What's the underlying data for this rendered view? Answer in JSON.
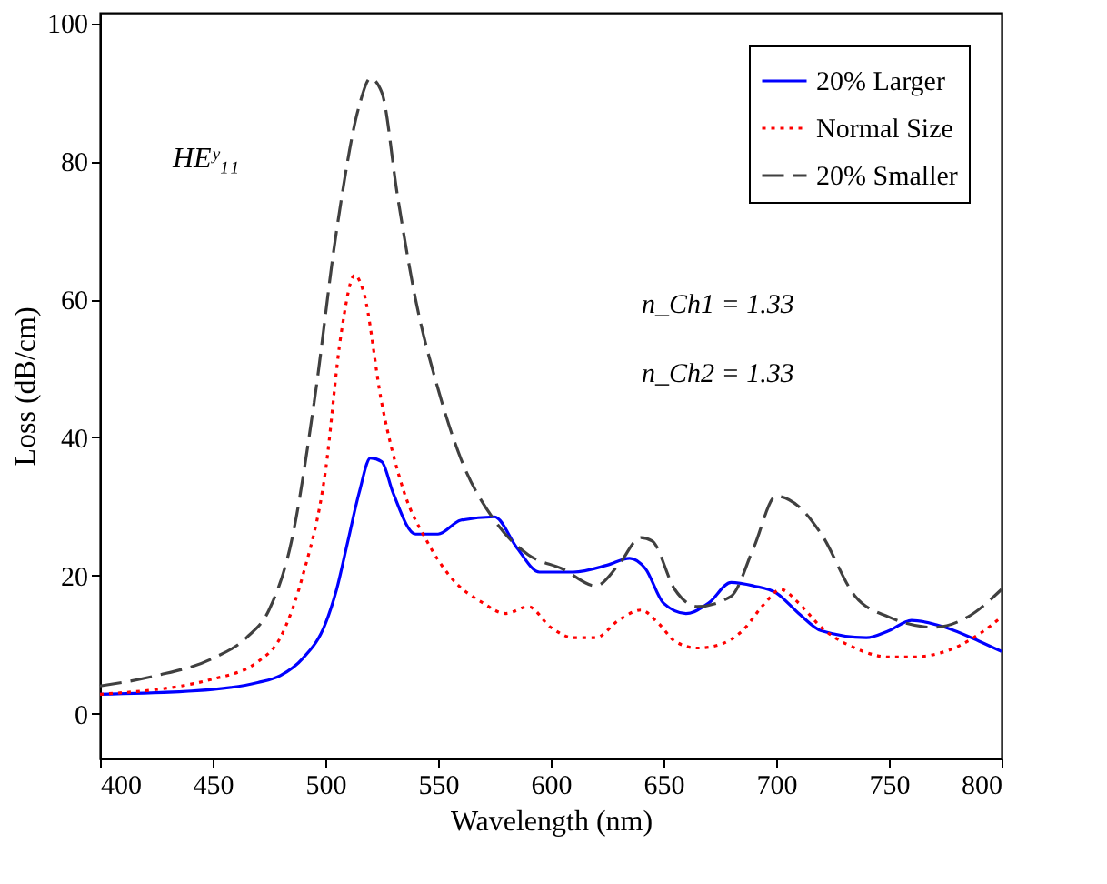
{
  "chart_data": {
    "type": "line",
    "xlabel": "Wavelength (nm)",
    "ylabel": "Loss (dB/cm)",
    "xlim": [
      400,
      800
    ],
    "ylim": [
      -6.5,
      101.5
    ],
    "xticks": [
      400,
      450,
      500,
      550,
      600,
      650,
      700,
      750,
      800
    ],
    "yticks": [
      0,
      20,
      40,
      60,
      80,
      100
    ],
    "grid": false,
    "legend": "top right",
    "marker": "none",
    "annotations": [
      "HEʸ₁₁",
      "n_Ch1 = 1.33",
      "n_Ch2 = 1.33"
    ],
    "series": [
      {
        "name": "20% Larger",
        "color": "#0000ff",
        "line_style": "solid",
        "x": [
          400,
          450,
          470,
          480,
          490,
          500,
          505,
          510,
          515,
          520,
          525,
          530,
          540,
          550,
          560,
          575,
          585,
          595,
          610,
          625,
          635,
          642,
          650,
          660,
          670,
          680,
          690,
          700,
          710,
          720,
          740,
          750,
          760,
          775,
          790,
          800
        ],
        "values": [
          2.8,
          3.5,
          4.5,
          5.5,
          8,
          13,
          18,
          25,
          32,
          37,
          36.5,
          32,
          26,
          26,
          28,
          28.5,
          24,
          20.5,
          20.5,
          21.5,
          22.5,
          21,
          16,
          14.5,
          16,
          19,
          18.5,
          17.5,
          14.5,
          12,
          11,
          12,
          13.5,
          12.5,
          10.5,
          9
        ]
      },
      {
        "name": "Normal Size",
        "color": "#ff0000",
        "line_style": "dotted",
        "x": [
          400,
          450,
          470,
          480,
          490,
          500,
          507,
          513,
          517,
          525,
          535,
          545,
          555,
          570,
          580,
          590,
          600,
          610,
          620,
          630,
          640,
          648,
          655,
          665,
          675,
          685,
          695,
          702,
          710,
          720,
          735,
          750,
          760,
          775,
          790,
          800
        ],
        "values": [
          2.8,
          5,
          7.5,
          11,
          20,
          35,
          55,
          63.5,
          61,
          45,
          32,
          25,
          20,
          16,
          14.5,
          15.5,
          12.5,
          11,
          11,
          13.5,
          15,
          13,
          10.5,
          9.5,
          10,
          12,
          16,
          18,
          16,
          12.5,
          9.5,
          8.2,
          8.2,
          9,
          11.5,
          14
        ]
      },
      {
        "name": "20% Smaller",
        "color": "#404040",
        "line_style": "dashed",
        "x": [
          400,
          425,
          450,
          465,
          475,
          485,
          495,
          505,
          515,
          520,
          525,
          532,
          540,
          550,
          560,
          575,
          590,
          605,
          620,
          630,
          640,
          645,
          655,
          665,
          680,
          690,
          700,
          710,
          720,
          735,
          750,
          770,
          785,
          800
        ],
        "values": [
          4,
          5.5,
          8,
          11,
          15,
          25,
          45,
          70,
          88,
          92,
          90,
          75,
          60,
          47,
          37,
          28,
          23,
          21,
          18.5,
          21.5,
          25.5,
          25,
          18,
          15.5,
          17,
          24,
          31.5,
          30,
          26,
          17,
          14,
          12.5,
          14,
          18
        ]
      }
    ]
  }
}
